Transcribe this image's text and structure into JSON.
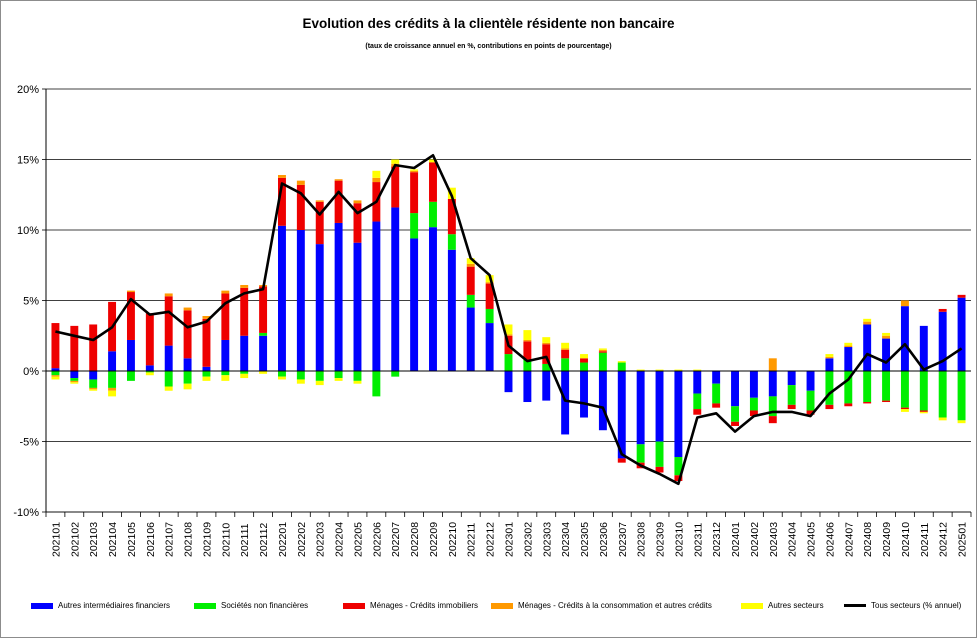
{
  "chart_data": {
    "type": "bar",
    "stacked": true,
    "title": "Evolution des crédits à la clientèle résidente non bancaire",
    "subtitle": "(taux de croissance annuel en %, contributions en points de pourcentage)",
    "ylim": [
      -10,
      20
    ],
    "yticks": [
      -10,
      -5,
      0,
      5,
      10,
      15,
      20
    ],
    "ytick_labels": [
      "-10%",
      "-5%",
      "0%",
      "5%",
      "10%",
      "15%",
      "20%"
    ],
    "grid": "horizontal",
    "legend_position": "bottom",
    "categories": [
      "202101",
      "202102",
      "202103",
      "202104",
      "202105",
      "202106",
      "202107",
      "202108",
      "202109",
      "202110",
      "202111",
      "202112",
      "202201",
      "202202",
      "202203",
      "202204",
      "202205",
      "202206",
      "202207",
      "202208",
      "202209",
      "202210",
      "202211",
      "202212",
      "202301",
      "202302",
      "202303",
      "202304",
      "202305",
      "202306",
      "202307",
      "202308",
      "202309",
      "202310",
      "202311",
      "202312",
      "202401",
      "202402",
      "202403",
      "202404",
      "202405",
      "202406",
      "202407",
      "202408",
      "202409",
      "202410",
      "202411",
      "202412",
      "202501"
    ],
    "series": [
      {
        "name": "Autres intermédiaires financiers",
        "color": "#0000ff",
        "values": [
          0.2,
          -0.5,
          -0.6,
          1.4,
          2.2,
          0.4,
          1.8,
          0.9,
          0.3,
          2.2,
          2.5,
          2.5,
          10.3,
          10.0,
          9.0,
          10.5,
          9.1,
          10.6,
          11.6,
          9.4,
          10.2,
          8.6,
          4.5,
          3.4,
          -1.5,
          -2.2,
          -2.1,
          -4.5,
          -3.3,
          -4.2,
          -6.2,
          -5.2,
          -5.0,
          -6.1,
          -1.6,
          -0.9,
          -2.5,
          -1.9,
          -1.8,
          -1.0,
          -1.4,
          0.9,
          1.7,
          3.3,
          2.3,
          4.6,
          3.2,
          4.2,
          5.2
        ]
      },
      {
        "name": "Sociétés non financières",
        "color": "#00ee00",
        "values": [
          -0.3,
          -0.2,
          -0.6,
          -1.2,
          -0.7,
          -0.1,
          -1.1,
          -0.9,
          -0.4,
          -0.3,
          -0.2,
          0.2,
          -0.4,
          -0.6,
          -0.7,
          -0.5,
          -0.7,
          -1.8,
          -0.4,
          1.8,
          1.8,
          1.1,
          0.9,
          1.0,
          1.2,
          0.8,
          0.5,
          0.9,
          0.6,
          1.3,
          0.6,
          -1.3,
          -1.8,
          -1.3,
          -1.1,
          -1.4,
          -1.1,
          -0.9,
          -1.4,
          -1.4,
          -1.4,
          -2.4,
          -2.3,
          -2.2,
          -2.1,
          -2.6,
          -2.8,
          -3.3,
          -3.5
        ]
      },
      {
        "name": "Ménages - Crédits immobiliers",
        "color": "#ee0000",
        "values": [
          3.2,
          3.2,
          3.3,
          3.5,
          3.4,
          3.7,
          3.5,
          3.4,
          3.4,
          3.3,
          3.4,
          3.3,
          3.4,
          3.2,
          3.0,
          3.0,
          2.8,
          2.8,
          2.9,
          2.9,
          2.8,
          2.5,
          2.0,
          1.8,
          1.3,
          1.3,
          1.4,
          0.6,
          0.3,
          0.1,
          -0.3,
          -0.4,
          -0.4,
          -0.4,
          -0.4,
          -0.3,
          -0.3,
          -0.4,
          -0.5,
          -0.3,
          -0.3,
          -0.3,
          -0.2,
          -0.1,
          -0.1,
          -0.1,
          -0.1,
          0.2,
          0.2
        ]
      },
      {
        "name": "Ménages - Crédits à la consommation et autres crédits",
        "color": "#ff9900",
        "values": [
          -0.1,
          -0.1,
          -0.1,
          -0.2,
          0.1,
          0.0,
          0.2,
          0.2,
          0.2,
          0.2,
          0.2,
          0.1,
          0.2,
          0.3,
          0.1,
          0.1,
          0.2,
          0.3,
          0.2,
          0.1,
          0.0,
          0.0,
          0.2,
          0.1,
          0.1,
          0.1,
          0.1,
          0.1,
          0.0,
          0.1,
          0.0,
          0.0,
          0.0,
          0.0,
          0.0,
          0.0,
          0.0,
          0.0,
          0.9,
          0.0,
          0.0,
          0.1,
          0.1,
          0.2,
          0.2,
          0.4,
          0.0,
          0.0,
          0.0
        ]
      },
      {
        "name": "Autres secteurs",
        "color": "#ffff00",
        "values": [
          -0.2,
          -0.1,
          -0.1,
          -0.4,
          0.0,
          -0.2,
          -0.3,
          -0.4,
          -0.3,
          -0.4,
          -0.3,
          -0.2,
          -0.2,
          -0.3,
          -0.3,
          -0.2,
          -0.2,
          0.5,
          0.3,
          0.1,
          0.2,
          0.8,
          0.4,
          0.5,
          0.7,
          0.7,
          0.4,
          0.4,
          0.3,
          0.1,
          0.1,
          0.1,
          0.1,
          0.1,
          0.1,
          0.0,
          0.0,
          0.0,
          0.0,
          0.0,
          0.0,
          0.2,
          0.2,
          0.2,
          0.2,
          -0.2,
          -0.1,
          -0.2,
          -0.2
        ]
      },
      {
        "name": "Tous secteurs (% annuel)",
        "color": "#000000",
        "type": "line",
        "values": [
          2.8,
          2.5,
          2.2,
          3.1,
          5.1,
          4.0,
          4.2,
          3.1,
          3.5,
          4.8,
          5.5,
          5.8,
          13.3,
          12.6,
          11.1,
          12.7,
          11.2,
          12.0,
          14.6,
          14.4,
          15.3,
          12.4,
          8.0,
          6.8,
          1.8,
          0.7,
          1.0,
          -2.1,
          -2.3,
          -2.6,
          -5.9,
          -6.7,
          -7.3,
          -8.0,
          -3.3,
          -3.0,
          -4.3,
          -3.2,
          -2.9,
          -2.9,
          -3.2,
          -1.6,
          -0.6,
          1.2,
          0.6,
          1.9,
          0.1,
          0.7,
          1.6
        ]
      }
    ]
  }
}
